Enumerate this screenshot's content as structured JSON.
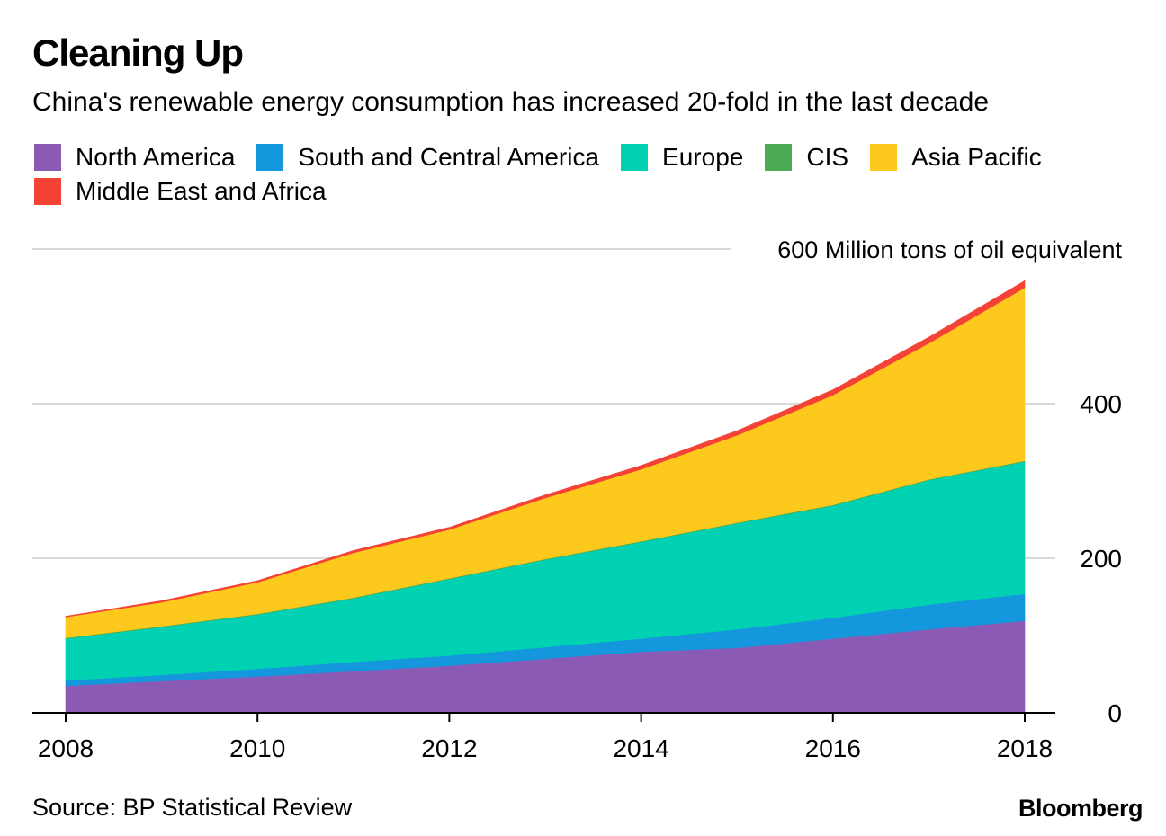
{
  "header": {
    "title": "Cleaning Up",
    "subtitle": "China's renewable energy consumption has increased 20-fold in the last decade"
  },
  "footer": {
    "source": "Source: BP Statistical Review",
    "brand": "Bloomberg"
  },
  "chart_data": {
    "type": "area",
    "stacked": true,
    "title": "Cleaning Up",
    "subtitle": "China's renewable energy consumption has increased 20-fold in the last decade",
    "unit_label": "600 Million tons of oil equivalent",
    "xlabel": "",
    "ylabel": "Million tons of oil equivalent",
    "x": [
      2008,
      2009,
      2010,
      2011,
      2012,
      2013,
      2014,
      2015,
      2016,
      2017,
      2018
    ],
    "x_ticks": [
      "2008",
      "2010",
      "2012",
      "2014",
      "2016",
      "2018"
    ],
    "y_ticks": [
      "0",
      "200",
      "400"
    ],
    "ylim": [
      0,
      600
    ],
    "grid": true,
    "legend_position": "top",
    "series": [
      {
        "name": "North America",
        "color": "#8a5ab5",
        "values": [
          35,
          41,
          47,
          54,
          61,
          70,
          79,
          84,
          96,
          108,
          119
        ]
      },
      {
        "name": "South and Central America",
        "color": "#1597dd",
        "values": [
          7,
          8,
          10,
          12,
          13,
          15,
          17,
          24,
          27,
          32,
          35
        ]
      },
      {
        "name": "Europe",
        "color": "#00d1b2",
        "values": [
          54,
          62,
          70,
          82,
          99,
          113,
          125,
          137,
          145,
          161,
          171
        ]
      },
      {
        "name": "CIS",
        "color": "#4caa52",
        "values": [
          1,
          1,
          1,
          1,
          1,
          1,
          1,
          1,
          1,
          1,
          1
        ]
      },
      {
        "name": "Asia Pacific",
        "color": "#fdc91c",
        "values": [
          27,
          31,
          41,
          58,
          63,
          79,
          93,
          113,
          142,
          176,
          224
        ]
      },
      {
        "name": "Middle East and Africa",
        "color": "#f44336",
        "values": [
          1,
          2,
          2,
          3,
          3,
          4,
          5,
          6,
          7,
          8,
          9
        ]
      }
    ]
  }
}
